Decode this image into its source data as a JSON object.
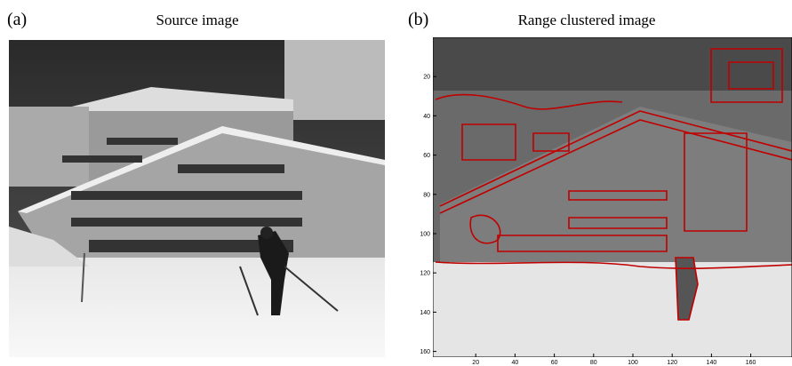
{
  "panels": [
    {
      "label": "(a)",
      "title": "Source image"
    },
    {
      "label": "(b)",
      "title": "Range clustered image",
      "xlim": [
        0,
        181
      ],
      "ylim": [
        0,
        162
      ],
      "xticks": [
        20,
        40,
        60,
        80,
        100,
        120,
        140,
        160
      ],
      "yticks": [
        20,
        40,
        60,
        80,
        100,
        120,
        140,
        160
      ]
    }
  ]
}
